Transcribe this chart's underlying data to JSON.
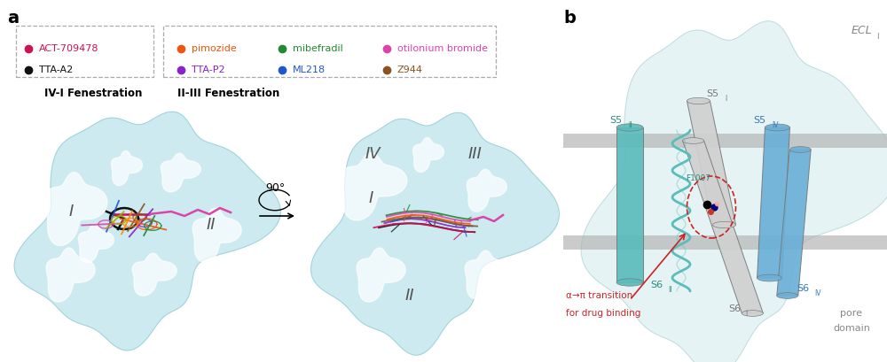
{
  "panel_a_label": "a",
  "panel_b_label": "b",
  "bg_color": "#ffffff",
  "blob_color": "#c5e8ed",
  "blob_edge": "#99ccd4",
  "legend_IV_I_title": "IV-I Fenestration",
  "legend_II_III_title": "II-III Fenestration",
  "legend_entries": [
    {
      "label": "TTA-A2",
      "color": "#111111",
      "group": "IV-I"
    },
    {
      "label": "ACT-709478",
      "color": "#cc1155",
      "group": "IV-I"
    },
    {
      "label": "TTA-P2",
      "color": "#8822cc",
      "group": "II-III"
    },
    {
      "label": "ML218",
      "color": "#2255cc",
      "group": "II-III"
    },
    {
      "label": "Z944",
      "color": "#885522",
      "group": "II-III"
    },
    {
      "label": "pimozide",
      "color": "#ee5511",
      "group": "II-III"
    },
    {
      "label": "mibefradil",
      "color": "#228833",
      "group": "II-III"
    },
    {
      "label": "otilonium bromide",
      "color": "#dd44aa",
      "group": "II-III"
    }
  ],
  "drug_colors": [
    "#111111",
    "#cc1155",
    "#8822cc",
    "#2255cc",
    "#885522",
    "#ee5511",
    "#228833",
    "#dd44aa",
    "#aaaa00",
    "#ff8800"
  ],
  "helix_teal": "#5bbcbc",
  "helix_blue": "#6bb0d8",
  "helix_gray": "#c0c0c0",
  "membrane_color": "#b0b0b0",
  "roman_color": "#555555",
  "ecl_color": "#888888",
  "teal_label": "#2a8a7a",
  "blue_label": "#3377bb",
  "gray_label": "#777777",
  "red_color": "#cc2222"
}
